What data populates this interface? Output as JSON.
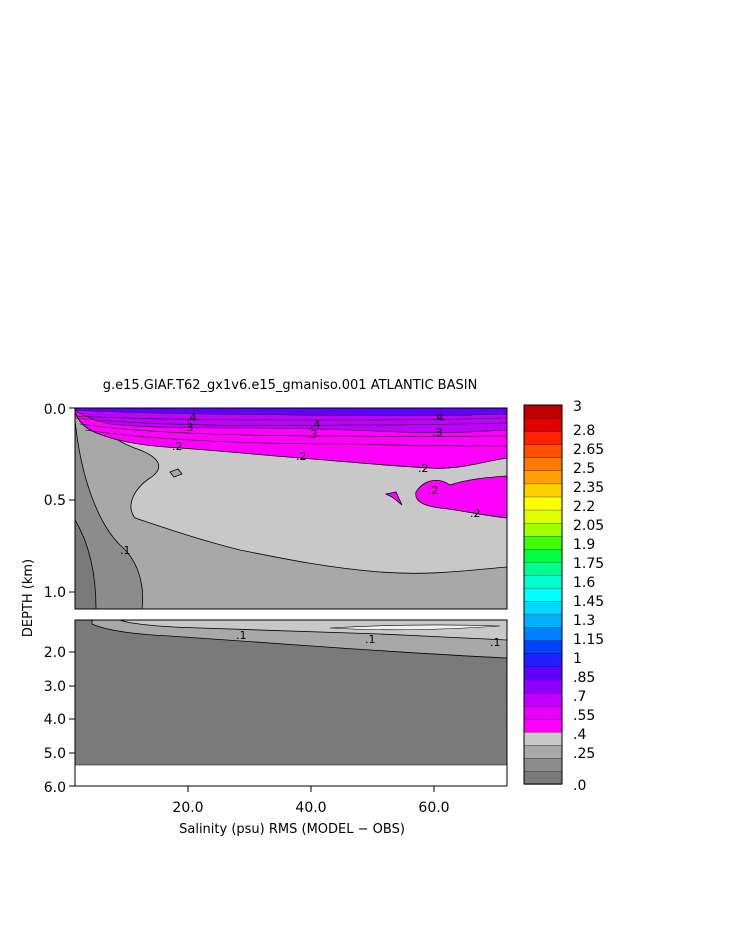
{
  "chart_data": {
    "type": "contour",
    "title": "g.e15.GIAF.T62_gx1v6.e15_gmaniso.001 ATLANTIC BASIN",
    "xlabel": "Salinity (psu) RMS (MODEL − OBS)",
    "ylabel": "DEPTH (km)",
    "upper_panel": {
      "ylim": [
        0.0,
        1.1
      ],
      "yticks": [
        "0.0",
        "0.5",
        "1.0"
      ]
    },
    "lower_panel": {
      "ylim": [
        1.5,
        6.0
      ],
      "yticks": [
        "2.0",
        "3.0",
        "4.0",
        "5.0",
        "6.0"
      ]
    },
    "x_ticks": [
      "20.0",
      "40.0",
      "60.0"
    ],
    "xlim": [
      2,
      72
    ],
    "contour_labels": [
      ".1",
      ".2",
      ".3",
      ".4"
    ],
    "colorbar_labels": [
      "3",
      "2.8",
      "2.65",
      "2.5",
      "2.35",
      "2.2",
      "2.05",
      "1.9",
      "1.75",
      "1.6",
      "1.45",
      "1.3",
      "1.15",
      "1",
      ".85",
      ".7",
      ".55",
      ".4",
      ".25",
      ".0"
    ],
    "colorbar_colors": [
      "#7a7a7a",
      "#8c8c8c",
      "#a8a8a8",
      "#c8c8c8",
      "#ff00ff",
      "#e800ff",
      "#c000ff",
      "#9000ff",
      "#6000ff",
      "#2020ff",
      "#0040ff",
      "#0080ff",
      "#00b0ff",
      "#00d8ff",
      "#00ffff",
      "#00ffd0",
      "#00ff90",
      "#00ff40",
      "#40ff00",
      "#a0ff00",
      "#e0ff00",
      "#ffff00",
      "#ffd000",
      "#ffa000",
      "#ff7a00",
      "#ff5000",
      "#ff2000",
      "#e00000",
      "#c00000"
    ]
  }
}
